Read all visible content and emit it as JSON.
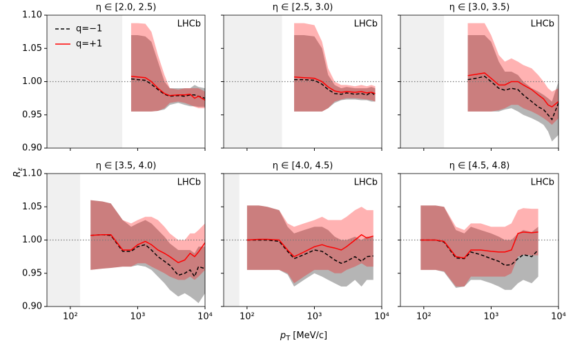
{
  "figure": {
    "ylabel": "R",
    "ylabel_sub": "ε",
    "xlabel": "p",
    "xlabel_sub": "T",
    "xlabel_unit": "[MeV/c]"
  },
  "chart_data": [
    {
      "type": "line",
      "title": "η ∈ [2.0, 2.5)",
      "annotation": "LHCb",
      "legend": "upper left",
      "log_x": true,
      "reference_line": 1,
      "xlim": [
        45,
        10000
      ],
      "ylim": [
        0.9,
        1.1
      ],
      "excluded_xlim": [
        45,
        590
      ],
      "xticks": [
        100,
        1000,
        10000
      ],
      "yticks": [
        {
          "value": 0.9,
          "label": "0.90"
        },
        {
          "value": 0.95,
          "label": "0.95"
        },
        {
          "value": 1.0,
          "label": "1.00"
        },
        {
          "value": 1.05,
          "label": "1.05"
        },
        {
          "value": 1.1,
          "label": "1.10"
        }
      ],
      "x": [
        800,
        1000,
        1300,
        1600,
        2000,
        2500,
        3000,
        4000,
        5000,
        6000,
        7000,
        8000,
        10000
      ],
      "series": [
        {
          "name": "q=−1",
          "color": "#000000",
          "dash": true,
          "band_color": "#b5b5b5",
          "band_opacity": 1,
          "values": [
            1.004,
            1.003,
            1.002,
            0.996,
            0.988,
            0.981,
            0.978,
            0.979,
            0.978,
            0.98,
            0.98,
            0.978,
            0.975
          ],
          "upper": [
            1.07,
            1.07,
            1.068,
            1.06,
            1.03,
            1.0,
            0.99,
            0.99,
            0.99,
            0.99,
            0.995,
            0.992,
            0.99
          ],
          "lower": [
            0.955,
            0.955,
            0.955,
            0.955,
            0.956,
            0.958,
            0.965,
            0.968,
            0.965,
            0.963,
            0.963,
            0.962,
            0.962
          ]
        },
        {
          "name": "q=+1",
          "color": "#ff0000",
          "dash": false,
          "band_color": "#ff0000",
          "band_opacity": 0.3,
          "values": [
            1.008,
            1.007,
            1.006,
            1.0,
            0.99,
            0.982,
            0.979,
            0.98,
            0.98,
            0.981,
            0.975,
            0.978,
            0.972
          ],
          "upper": [
            1.088,
            1.088,
            1.087,
            1.075,
            1.04,
            1.01,
            0.99,
            0.988,
            0.99,
            0.99,
            0.99,
            0.99,
            0.985
          ],
          "lower": [
            0.955,
            0.955,
            0.955,
            0.955,
            0.956,
            0.96,
            0.968,
            0.97,
            0.968,
            0.965,
            0.962,
            0.96,
            0.96
          ]
        }
      ]
    },
    {
      "type": "line",
      "title": "η ∈ [2.5, 3.0)",
      "annotation": "LHCb",
      "log_x": true,
      "reference_line": 1,
      "xlim": [
        45,
        10000
      ],
      "ylim": [
        0.9,
        1.1
      ],
      "excluded_xlim": [
        45,
        330
      ],
      "xticks": [
        100,
        1000,
        10000
      ],
      "yticks": [
        0.9,
        0.95,
        1.0,
        1.05,
        1.1
      ],
      "x": [
        500,
        700,
        1000,
        1300,
        1600,
        2000,
        2500,
        3000,
        4000,
        5000,
        6000,
        7000,
        8000
      ],
      "series": [
        {
          "color": "#000000",
          "dash": true,
          "band_color": "#b5b5b5",
          "band_opacity": 1,
          "values": [
            1.003,
            1.003,
            1.002,
            0.996,
            0.988,
            0.982,
            0.981,
            0.983,
            0.981,
            0.982,
            0.98,
            0.984,
            0.979
          ],
          "upper": [
            1.07,
            1.07,
            1.068,
            1.05,
            1.01,
            0.995,
            0.99,
            0.992,
            0.99,
            0.99,
            0.99,
            0.992,
            0.99
          ],
          "lower": [
            0.955,
            0.955,
            0.955,
            0.955,
            0.96,
            0.968,
            0.972,
            0.973,
            0.973,
            0.972,
            0.972,
            0.97,
            0.97
          ]
        },
        {
          "color": "#ff0000",
          "dash": false,
          "band_color": "#ff0000",
          "band_opacity": 0.3,
          "values": [
            1.007,
            1.006,
            1.005,
            1.0,
            0.992,
            0.986,
            0.984,
            0.985,
            0.984,
            0.985,
            0.983,
            0.984,
            0.982
          ],
          "upper": [
            1.088,
            1.088,
            1.085,
            1.06,
            1.02,
            1.0,
            0.995,
            0.995,
            0.993,
            0.995,
            0.993,
            0.995,
            0.993
          ],
          "lower": [
            0.955,
            0.955,
            0.955,
            0.955,
            0.96,
            0.97,
            0.973,
            0.975,
            0.975,
            0.974,
            0.973,
            0.972,
            0.97
          ]
        }
      ]
    },
    {
      "type": "line",
      "title": "η ∈ [3.0, 3.5)",
      "annotation": "LHCb",
      "log_x": true,
      "reference_line": 1,
      "xlim": [
        45,
        10000
      ],
      "ylim": [
        0.9,
        1.1
      ],
      "excluded_xlim": [
        45,
        200
      ],
      "xticks": [
        100,
        1000,
        10000
      ],
      "yticks": [
        0.9,
        0.95,
        1.0,
        1.05,
        1.1
      ],
      "x": [
        450,
        600,
        800,
        1000,
        1300,
        1600,
        2000,
        2500,
        3000,
        4000,
        5000,
        6000,
        7000,
        8000,
        10000
      ],
      "series": [
        {
          "color": "#000000",
          "dash": true,
          "band_color": "#b5b5b5",
          "band_opacity": 1,
          "values": [
            1.003,
            1.005,
            1.008,
            1.0,
            0.99,
            0.987,
            0.99,
            0.988,
            0.98,
            0.97,
            0.962,
            0.958,
            0.95,
            0.943,
            0.968
          ],
          "upper": [
            1.07,
            1.07,
            1.07,
            1.06,
            1.03,
            1.015,
            1.015,
            1.01,
            1.0,
            0.99,
            0.985,
            0.98,
            0.975,
            0.97,
            1.0
          ],
          "lower": [
            0.955,
            0.955,
            0.955,
            0.955,
            0.955,
            0.958,
            0.96,
            0.955,
            0.95,
            0.945,
            0.94,
            0.935,
            0.925,
            0.91,
            0.92
          ]
        },
        {
          "color": "#ff0000",
          "dash": false,
          "band_color": "#ff0000",
          "band_opacity": 0.3,
          "values": [
            1.009,
            1.011,
            1.013,
            1.005,
            0.995,
            0.995,
            1.0,
            1.0,
            0.995,
            0.988,
            0.98,
            0.974,
            0.965,
            0.962,
            0.97
          ],
          "upper": [
            1.088,
            1.088,
            1.088,
            1.07,
            1.04,
            1.03,
            1.035,
            1.03,
            1.025,
            1.02,
            1.01,
            1.0,
            0.99,
            0.985,
            0.99
          ],
          "lower": [
            0.955,
            0.955,
            0.955,
            0.955,
            0.957,
            0.96,
            0.965,
            0.965,
            0.96,
            0.955,
            0.95,
            0.945,
            0.94,
            0.935,
            0.945
          ]
        }
      ]
    },
    {
      "type": "line",
      "title": "η ∈ [3.5, 4.0)",
      "annotation": "LHCb",
      "log_x": true,
      "reference_line": 1,
      "xlim": [
        45,
        10000
      ],
      "ylim": [
        0.9,
        1.1
      ],
      "excluded_xlim": [
        45,
        140
      ],
      "xticks": [
        {
          "value": 100,
          "label": "10²"
        },
        {
          "value": 1000,
          "label": "10³"
        },
        {
          "value": 10000,
          "label": "10⁴"
        }
      ],
      "yticks": [
        {
          "value": 0.9,
          "label": "0.90"
        },
        {
          "value": 0.95,
          "label": "0.95"
        },
        {
          "value": 1.0,
          "label": "1.00"
        },
        {
          "value": 1.05,
          "label": "1.05"
        },
        {
          "value": 1.1,
          "label": "1.10"
        }
      ],
      "x": [
        200,
        300,
        400,
        600,
        800,
        1000,
        1300,
        1600,
        2000,
        2500,
        3000,
        4000,
        5000,
        6000,
        7000,
        8000,
        10000
      ],
      "series": [
        {
          "color": "#000000",
          "dash": true,
          "band_color": "#b5b5b5",
          "band_opacity": 1,
          "values": [
            1.007,
            1.008,
            1.007,
            0.983,
            0.983,
            0.99,
            0.993,
            0.985,
            0.975,
            0.968,
            0.962,
            0.947,
            0.95,
            0.955,
            0.945,
            0.96,
            0.957
          ],
          "upper": [
            1.06,
            1.058,
            1.055,
            1.03,
            1.02,
            1.025,
            1.03,
            1.025,
            1.015,
            1.005,
            0.995,
            0.985,
            0.985,
            0.985,
            0.98,
            0.99,
            0.99
          ],
          "lower": [
            0.955,
            0.957,
            0.958,
            0.96,
            0.96,
            0.962,
            0.96,
            0.955,
            0.945,
            0.935,
            0.925,
            0.915,
            0.92,
            0.915,
            0.91,
            0.905,
            0.92
          ]
        },
        {
          "color": "#ff0000",
          "dash": false,
          "band_color": "#ff0000",
          "band_opacity": 0.3,
          "values": [
            1.007,
            1.008,
            1.008,
            0.985,
            0.985,
            0.993,
            0.998,
            0.993,
            0.985,
            0.98,
            0.975,
            0.966,
            0.97,
            0.98,
            0.975,
            0.982,
            0.996
          ],
          "upper": [
            1.06,
            1.058,
            1.055,
            1.03,
            1.025,
            1.03,
            1.035,
            1.035,
            1.03,
            1.02,
            1.01,
            1.0,
            1.0,
            1.01,
            1.01,
            1.015,
            1.025
          ],
          "lower": [
            0.955,
            0.957,
            0.958,
            0.96,
            0.96,
            0.965,
            0.965,
            0.96,
            0.955,
            0.95,
            0.945,
            0.94,
            0.94,
            0.945,
            0.94,
            0.945,
            0.955
          ]
        }
      ]
    },
    {
      "type": "line",
      "title": "η ∈ [4.0, 4.5)",
      "annotation": "LHCb",
      "log_x": true,
      "reference_line": 1,
      "xlim": [
        45,
        10000
      ],
      "ylim": [
        0.9,
        1.1
      ],
      "excluded_xlim": [
        45,
        77
      ],
      "xticks": [
        {
          "value": 100,
          "label": "10²"
        },
        {
          "value": 1000,
          "label": "10³"
        },
        {
          "value": 10000,
          "label": "10⁴"
        }
      ],
      "yticks": [
        0.9,
        0.95,
        1.0,
        1.05,
        1.1
      ],
      "x": [
        100,
        150,
        200,
        300,
        400,
        500,
        700,
        1000,
        1300,
        1600,
        2000,
        2500,
        3000,
        4000,
        5000,
        6000,
        7500
      ],
      "series": [
        {
          "color": "#000000",
          "dash": true,
          "band_color": "#b5b5b5",
          "band_opacity": 1,
          "values": [
            1.0,
            1.0,
            1.0,
            0.998,
            0.983,
            0.972,
            0.978,
            0.985,
            0.983,
            0.977,
            0.97,
            0.965,
            0.968,
            0.975,
            0.968,
            0.975,
            0.976
          ],
          "upper": [
            1.052,
            1.052,
            1.05,
            1.045,
            1.02,
            1.01,
            1.015,
            1.02,
            1.02,
            1.015,
            1.005,
            1.0,
            1.0,
            1.005,
            1.0,
            1.005,
            1.005
          ],
          "lower": [
            0.955,
            0.955,
            0.955,
            0.955,
            0.948,
            0.93,
            0.94,
            0.95,
            0.945,
            0.94,
            0.935,
            0.93,
            0.93,
            0.94,
            0.93,
            0.94,
            0.94
          ]
        },
        {
          "color": "#ff0000",
          "dash": false,
          "band_color": "#ff0000",
          "band_opacity": 0.3,
          "values": [
            1.0,
            1.001,
            1.001,
            1.0,
            0.985,
            0.975,
            0.982,
            0.99,
            0.993,
            0.99,
            0.988,
            0.985,
            0.99,
            1.0,
            1.008,
            1.003,
            1.006
          ],
          "upper": [
            1.052,
            1.052,
            1.05,
            1.045,
            1.025,
            1.02,
            1.025,
            1.03,
            1.035,
            1.03,
            1.03,
            1.03,
            1.035,
            1.045,
            1.05,
            1.045,
            1.045
          ],
          "lower": [
            0.955,
            0.955,
            0.955,
            0.955,
            0.95,
            0.935,
            0.945,
            0.955,
            0.955,
            0.955,
            0.95,
            0.95,
            0.955,
            0.96,
            0.965,
            0.96,
            0.96
          ]
        }
      ]
    },
    {
      "type": "line",
      "title": "η ∈ [4.5, 4.8)",
      "annotation": "LHCb",
      "log_x": true,
      "reference_line": 1,
      "xlim": [
        45,
        10000
      ],
      "ylim": [
        0.9,
        1.1
      ],
      "xticks": [
        {
          "value": 100,
          "label": "10²"
        },
        {
          "value": 1000,
          "label": "10³"
        },
        {
          "value": 10000,
          "label": "10⁴"
        }
      ],
      "yticks": [
        0.9,
        0.95,
        1.0,
        1.05,
        1.1
      ],
      "x": [
        90,
        150,
        200,
        300,
        400,
        500,
        700,
        1000,
        1300,
        1600,
        2000,
        2500,
        3000,
        4000,
        5000
      ],
      "series": [
        {
          "color": "#000000",
          "dash": true,
          "band_color": "#b5b5b5",
          "band_opacity": 1,
          "values": [
            1.0,
            1.0,
            0.997,
            0.973,
            0.972,
            0.982,
            0.978,
            0.972,
            0.968,
            0.962,
            0.963,
            0.972,
            0.978,
            0.975,
            0.985
          ],
          "upper": [
            1.052,
            1.052,
            1.05,
            1.015,
            1.01,
            1.02,
            1.015,
            1.01,
            1.005,
            1.0,
            1.0,
            1.01,
            1.015,
            1.012,
            1.02
          ],
          "lower": [
            0.955,
            0.955,
            0.952,
            0.928,
            0.93,
            0.94,
            0.94,
            0.935,
            0.93,
            0.925,
            0.925,
            0.935,
            0.94,
            0.935,
            0.945
          ]
        },
        {
          "color": "#ff0000",
          "dash": false,
          "band_color": "#ff0000",
          "band_opacity": 0.3,
          "values": [
            1.0,
            1.0,
            0.998,
            0.975,
            0.973,
            0.985,
            0.985,
            0.983,
            0.982,
            0.982,
            0.985,
            1.01,
            1.012,
            1.011,
            1.012
          ],
          "upper": [
            1.052,
            1.052,
            1.05,
            1.02,
            1.015,
            1.025,
            1.025,
            1.02,
            1.02,
            1.02,
            1.025,
            1.045,
            1.048,
            1.047,
            1.047
          ],
          "lower": [
            0.955,
            0.955,
            0.953,
            0.93,
            0.93,
            0.945,
            0.945,
            0.945,
            0.945,
            0.945,
            0.95,
            0.975,
            0.978,
            0.977,
            0.977
          ]
        }
      ]
    }
  ]
}
